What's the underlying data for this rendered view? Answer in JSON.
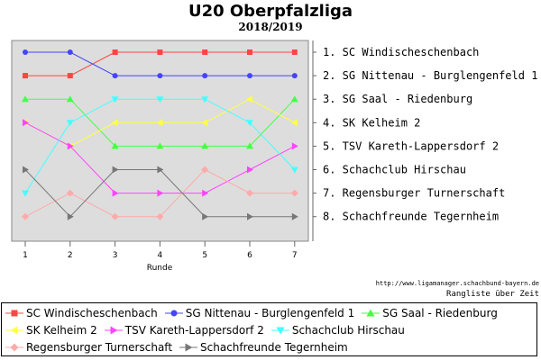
{
  "chart_data": {
    "type": "line",
    "title": "U20 Oberpfalzliga",
    "subtitle": "2018/2019",
    "xlabel": "Runde",
    "x": [
      1,
      2,
      3,
      4,
      5,
      6,
      7
    ],
    "ylim": [
      1,
      8
    ],
    "y_inverted": true,
    "grid": false,
    "legend_position": "bottom",
    "final_ranking": [
      "1.  SC Windischeschenbach",
      "2.  SG Nittenau - Burglengenfeld 1",
      "3.  SG Saal - Riedenburg",
      "4.  SK Kelheim 2",
      "5.  TSV Kareth-Lappersdorf 2",
      "6.  Schachclub Hirschau",
      "7.  Regensburger Turnerschaft",
      "8.  Schachfreunde Tegernheim"
    ],
    "series": [
      {
        "name": "SC Windischeschenbach",
        "color": "#ff4444",
        "marker": "square",
        "values": [
          2,
          2,
          1,
          1,
          1,
          1,
          1
        ]
      },
      {
        "name": "SG Nittenau - Burglengenfeld 1",
        "color": "#4444ff",
        "marker": "circle",
        "values": [
          1,
          1,
          2,
          2,
          2,
          2,
          2
        ]
      },
      {
        "name": "SG Saal - Riedenburg",
        "color": "#44ff44",
        "marker": "triangle-up",
        "values": [
          3,
          3,
          5,
          5,
          5,
          5,
          3
        ]
      },
      {
        "name": "SK Kelheim 2",
        "color": "#ffff44",
        "marker": "triangle-left",
        "values": [
          4,
          5,
          4,
          4,
          4,
          3,
          4
        ]
      },
      {
        "name": "TSV Kareth-Lappersdorf 2",
        "color": "#ff44ff",
        "marker": "triangle-right",
        "values": [
          4,
          5,
          7,
          7,
          7,
          6,
          5
        ]
      },
      {
        "name": "Schachclub Hirschau",
        "color": "#44ffff",
        "marker": "triangle-down",
        "values": [
          7,
          4,
          3,
          3,
          3,
          4,
          6
        ]
      },
      {
        "name": "Regensburger Turnerschaft",
        "color": "#ffaaaa",
        "marker": "diamond",
        "values": [
          8,
          7,
          8,
          8,
          6,
          7,
          7
        ]
      },
      {
        "name": "Schachfreunde Tegernheim",
        "color": "#777777",
        "marker": "triangle-right",
        "values": [
          6,
          8,
          6,
          6,
          8,
          8,
          8
        ]
      }
    ]
  },
  "footer": {
    "source_url": "http://www.ligamanager.schachbund-bayern.de",
    "note": "Rangliste über Zeit"
  }
}
